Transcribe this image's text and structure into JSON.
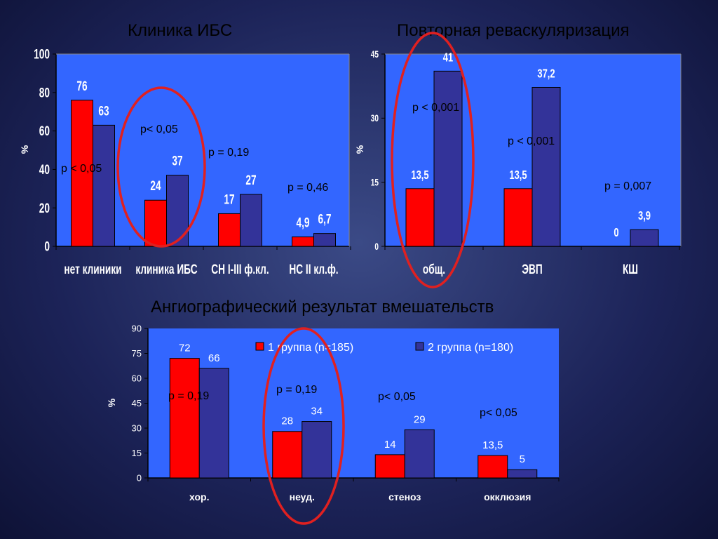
{
  "titles": {
    "top_left": "Клиника ИБС",
    "top_right": "Повторная реваскуляризация",
    "bottom": "Ангиографический результат вмешательств"
  },
  "colors": {
    "series1": "#ff0000",
    "series2": "#333399",
    "plot_bg": "#3366ff",
    "ellipse": "#e02020"
  },
  "chart_data": [
    {
      "type": "bar",
      "ylabel": "%",
      "ylim": [
        0,
        100
      ],
      "yticks": [
        0,
        20,
        40,
        60,
        80,
        100
      ],
      "categories": [
        "нет клиники",
        "клиника ИБС",
        "СН I-III ф.кл.",
        "НС II кл.ф."
      ],
      "series": [
        {
          "values": [
            76,
            24,
            17,
            4.9
          ],
          "labels": [
            "76",
            "24",
            "17",
            "4,9"
          ]
        },
        {
          "values": [
            63,
            37,
            27,
            6.7
          ],
          "labels": [
            "63",
            "37",
            "27",
            "6,7"
          ]
        }
      ],
      "annotations": [
        "p < 0,05",
        "p< 0,05",
        "p = 0,19",
        "p = 0,46"
      ]
    },
    {
      "type": "bar",
      "ylabel": "%",
      "ylim": [
        0,
        45
      ],
      "yticks": [
        0,
        15,
        30,
        45
      ],
      "categories": [
        "общ.",
        "ЭВП",
        "КШ"
      ],
      "series": [
        {
          "values": [
            13.5,
            13.5,
            0
          ],
          "labels": [
            "13,5",
            "13,5",
            "0"
          ]
        },
        {
          "values": [
            41,
            37.2,
            3.9
          ],
          "labels": [
            "41",
            "37,2",
            "3,9"
          ]
        }
      ],
      "annotations": [
        "p < 0,001",
        "p < 0,001",
        "p = 0,007"
      ]
    },
    {
      "type": "bar",
      "ylabel": "%",
      "ylim": [
        0,
        90
      ],
      "yticks": [
        0,
        15,
        30,
        45,
        60,
        75,
        90
      ],
      "categories": [
        "хор.",
        "неуд.",
        "стеноз",
        "окклюзия"
      ],
      "series": [
        {
          "name": "1 группа (n=185)",
          "values": [
            72,
            28,
            14,
            13.5
          ],
          "labels": [
            "72",
            "28",
            "14",
            "13,5"
          ]
        },
        {
          "name": "2 группа (n=180)",
          "values": [
            66,
            34,
            29,
            5
          ],
          "labels": [
            "66",
            "34",
            "29",
            "5"
          ]
        }
      ],
      "annotations": [
        "p = 0,19",
        "p = 0,19",
        "p< 0,05",
        "p< 0,05"
      ]
    }
  ]
}
